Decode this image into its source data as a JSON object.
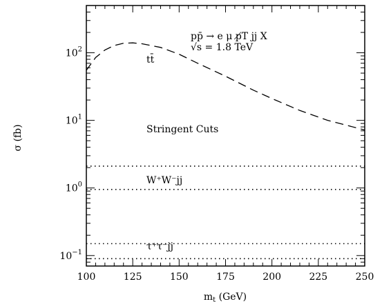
{
  "chart_data": {
    "type": "line",
    "title": "",
    "xlabel": "m_t (GeV)",
    "ylabel": "σ (fb)",
    "xlim": [
      100,
      250
    ],
    "ylim": [
      0.07,
      500
    ],
    "yscale": "log",
    "grid": false,
    "x_ticks": [
      100,
      125,
      150,
      175,
      200,
      225,
      250
    ],
    "x_tick_labels": [
      "100",
      "125",
      "150",
      "175",
      "200",
      "225",
      "250"
    ],
    "y_ticks": [
      0.1,
      1,
      10,
      100
    ],
    "y_tick_labels": [
      {
        "base": "10",
        "exp": "−1"
      },
      {
        "base": "10",
        "exp": "0"
      },
      {
        "base": "10",
        "exp": "1"
      },
      {
        "base": "10",
        "exp": "2"
      }
    ],
    "series": [
      {
        "name": "tt̄",
        "style": "dashed",
        "x": [
          100,
          105,
          110,
          115,
          120,
          125,
          130,
          140,
          150,
          160,
          175,
          190,
          200,
          215,
          230,
          250
        ],
        "y": [
          55,
          85,
          110,
          128,
          138,
          140,
          136,
          120,
          95,
          70,
          45,
          28,
          21,
          14,
          10,
          7.2
        ]
      },
      {
        "name": "W⁺W⁻jj upper",
        "style": "dotted",
        "x": [
          100,
          250
        ],
        "y": [
          2.1,
          2.1
        ]
      },
      {
        "name": "W⁺W⁻jj lower",
        "style": "dotted",
        "x": [
          100,
          250
        ],
        "y": [
          0.95,
          0.95
        ]
      },
      {
        "name": "τ⁺τ⁻jj upper",
        "style": "dotted",
        "x": [
          100,
          250
        ],
        "y": [
          0.15,
          0.15
        ]
      },
      {
        "name": "τ⁺τ⁻jj lower",
        "style": "dotted",
        "x": [
          100,
          250
        ],
        "y": [
          0.09,
          0.09
        ]
      }
    ],
    "annotations": {
      "process": "pp̄ → e μ p̸T jj X",
      "energy": "√s = 1.8 TeV",
      "ttbar": "tt̄",
      "cuts": "Stringent Cuts",
      "ww": "W⁺W⁻jj",
      "tautau": "τ⁺τ⁻jj"
    }
  }
}
